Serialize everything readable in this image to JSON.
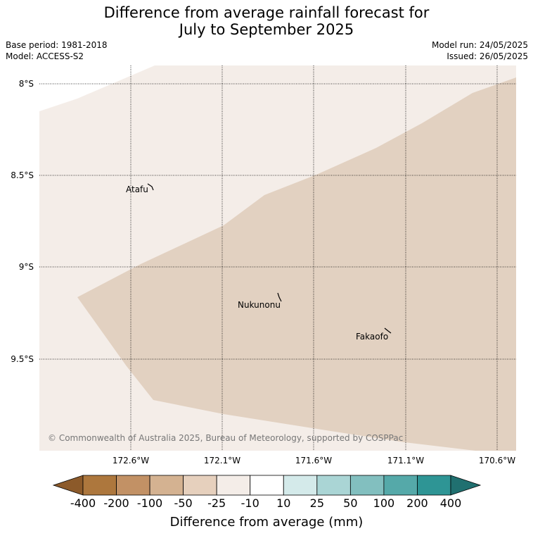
{
  "title_line1": "Difference from average rainfall forecast for",
  "title_line2": "July to September 2025",
  "base_period": "Base period: 1981-2018",
  "model": "Model: ACCESS-S2",
  "model_run": "Model run: 24/05/2025",
  "issued": "Issued: 26/05/2025",
  "copyright": "© Commonwealth of Australia 2025, Bureau of Meteorology, supported by COSPPac",
  "lat_labels": [
    "8°S",
    "8.5°S",
    "9°S",
    "9.5°S"
  ],
  "lon_labels": [
    "172.6°W",
    "172.1°W",
    "171.6°W",
    "171.1°W",
    "170.6°W"
  ],
  "places": [
    {
      "name": "Atafu"
    },
    {
      "name": "Nukunonu"
    },
    {
      "name": "Fakaofo"
    }
  ],
  "legend": {
    "title": "Difference from average (mm)",
    "labels": [
      "-400",
      "-200",
      "-100",
      "-50",
      "-25",
      "-10",
      "10",
      "25",
      "50",
      "100",
      "200",
      "400"
    ],
    "colors": [
      "#8c5a2a",
      "#ad773d",
      "#c29165",
      "#d4b291",
      "#e6d0bd",
      "#f4ede8",
      "#ffffff",
      "#d4eaea",
      "#aad5d5",
      "#82bfbf",
      "#55a9a9",
      "#2e9595",
      "#207070"
    ]
  },
  "regions": [
    {
      "category": "-25 to -10",
      "color": "#f4ede8"
    },
    {
      "category": "-50 to -25",
      "color": "#e2d1c1"
    }
  ]
}
